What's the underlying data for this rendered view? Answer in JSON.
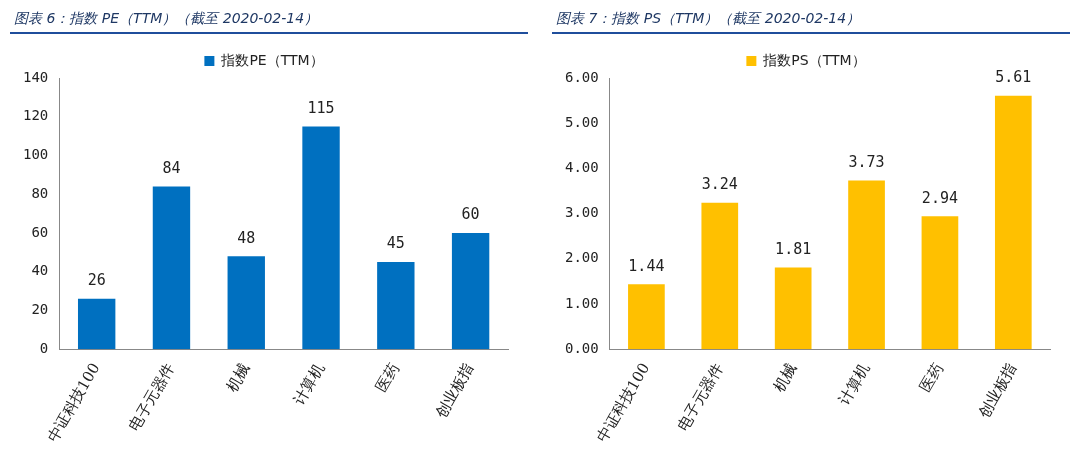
{
  "chart_data": [
    {
      "type": "bar",
      "title": "图表 6：指数 PE（TTM）（截至 2020-02-14）",
      "categories": [
        "中证科技100",
        "电子元器件",
        "机械",
        "计算机",
        "医药",
        "创业板指"
      ],
      "series": [
        {
          "name": "指数PE（TTM）",
          "color": "#0070c0",
          "values": [
            26,
            84,
            48,
            115,
            45,
            60
          ]
        }
      ],
      "ylim": [
        0,
        140
      ],
      "yticks": [
        0,
        20,
        40,
        60,
        80,
        100,
        120,
        140
      ],
      "grid": false,
      "legend": "top",
      "data_labels": true
    },
    {
      "type": "bar",
      "title": "图表 7：指数 PS（TTM）（截至 2020-02-14）",
      "categories": [
        "中证科技100",
        "电子元器件",
        "机械",
        "计算机",
        "医药",
        "创业板指"
      ],
      "series": [
        {
          "name": "指数PS（TTM）",
          "color": "#ffc000",
          "values": [
            1.44,
            3.24,
            1.81,
            3.73,
            2.94,
            5.61
          ]
        }
      ],
      "ylim": [
        0,
        6
      ],
      "yticks": [
        {
          "value": 0,
          "label": "0.00"
        },
        {
          "value": 1,
          "label": "1.00"
        },
        {
          "value": 2,
          "label": "2.00"
        },
        {
          "value": 3,
          "label": "3.00"
        },
        {
          "value": 4,
          "label": "4.00"
        },
        {
          "value": 5,
          "label": "5.00"
        },
        {
          "value": 6,
          "label": "6.00"
        }
      ],
      "grid": false,
      "legend": "top",
      "data_labels": true
    }
  ]
}
